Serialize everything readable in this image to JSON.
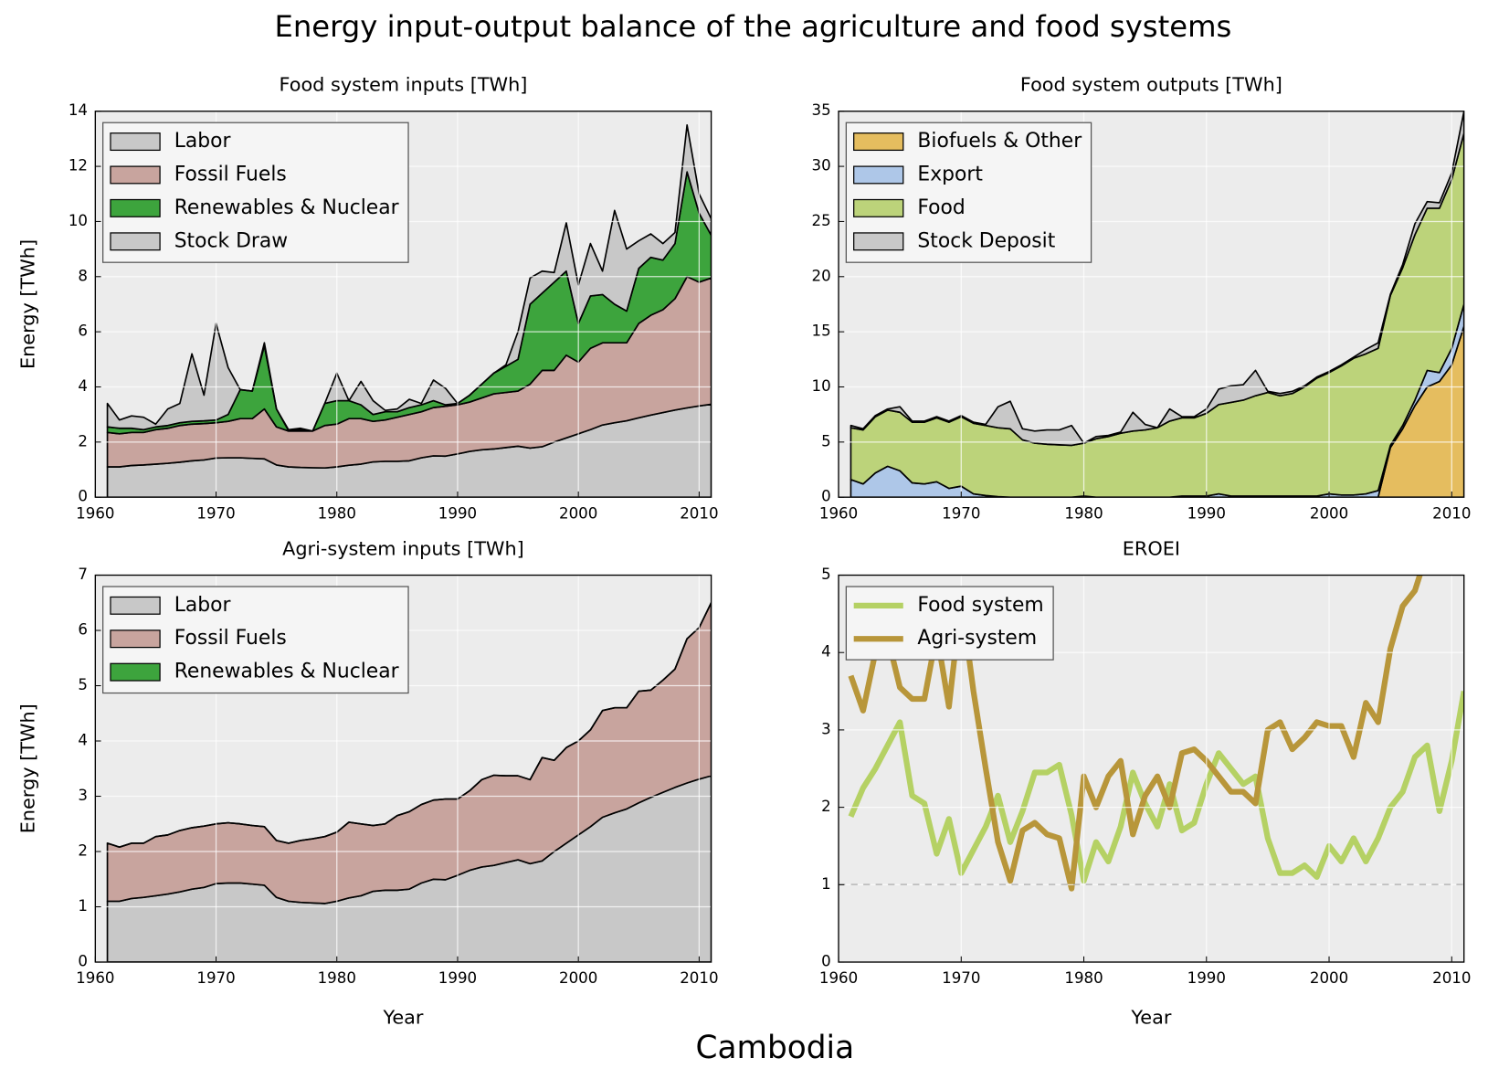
{
  "title": "Energy input-output balance of the agriculture and food systems",
  "country": "Cambodia",
  "chart_data": [
    {
      "type": "stacked_area",
      "title": "Food system inputs [TWh]",
      "ylabel": "Energy [TWh]",
      "xlim": [
        1960,
        2011
      ],
      "xticks": [
        1960,
        1970,
        1980,
        1990,
        2000,
        2010
      ],
      "ylim": [
        0,
        14
      ],
      "yticks": [
        0,
        2,
        4,
        6,
        8,
        10,
        12,
        14
      ],
      "grid": true,
      "legend": "upper left",
      "x": [
        1961,
        1962,
        1963,
        1964,
        1965,
        1966,
        1967,
        1968,
        1969,
        1970,
        1971,
        1972,
        1973,
        1974,
        1975,
        1976,
        1977,
        1978,
        1979,
        1980,
        1981,
        1982,
        1983,
        1984,
        1985,
        1986,
        1987,
        1988,
        1989,
        1990,
        1991,
        1992,
        1993,
        1994,
        1995,
        1996,
        1997,
        1998,
        1999,
        2000,
        2001,
        2002,
        2003,
        2004,
        2005,
        2006,
        2007,
        2008,
        2009,
        2010,
        2011
      ],
      "series": [
        {
          "name": "Labor",
          "color": "#c8c8c8",
          "values": [
            1.1,
            1.1,
            1.15,
            1.17,
            1.2,
            1.23,
            1.27,
            1.32,
            1.35,
            1.42,
            1.43,
            1.43,
            1.41,
            1.39,
            1.17,
            1.1,
            1.08,
            1.07,
            1.06,
            1.1,
            1.16,
            1.2,
            1.28,
            1.3,
            1.3,
            1.32,
            1.43,
            1.5,
            1.49,
            1.57,
            1.66,
            1.72,
            1.75,
            1.8,
            1.85,
            1.78,
            1.83,
            2.0,
            2.15,
            2.3,
            2.45,
            2.62,
            2.7,
            2.77,
            2.88,
            2.98,
            3.07,
            3.16,
            3.24,
            3.31,
            3.37
          ]
        },
        {
          "name": "Fossil Fuels",
          "color": "#c8a49e",
          "values": [
            1.25,
            1.2,
            1.2,
            1.18,
            1.25,
            1.27,
            1.33,
            1.33,
            1.32,
            1.28,
            1.32,
            1.42,
            1.44,
            1.81,
            1.38,
            1.3,
            1.32,
            1.33,
            1.54,
            1.55,
            1.69,
            1.65,
            1.47,
            1.5,
            1.6,
            1.68,
            1.67,
            1.75,
            1.81,
            1.78,
            1.79,
            1.88,
            2.0,
            2.0,
            2.0,
            2.32,
            2.77,
            2.6,
            3.0,
            2.6,
            2.95,
            2.98,
            2.9,
            2.83,
            3.42,
            3.62,
            3.73,
            4.04,
            4.76,
            4.49,
            4.58
          ]
        },
        {
          "name": "Renewables & Nuclear",
          "color": "#3da43d",
          "values": [
            0.2,
            0.2,
            0.15,
            0.1,
            0.1,
            0.1,
            0.1,
            0.1,
            0.1,
            0.1,
            0.25,
            1.05,
            1.0,
            2.3,
            0.65,
            0.02,
            0.05,
            0,
            0.8,
            0.85,
            0.65,
            0.5,
            0.25,
            0.3,
            0.2,
            0.25,
            0.25,
            0.25,
            0.05,
            0.05,
            0.25,
            0.5,
            0.75,
            0.95,
            1.15,
            2.9,
            2.8,
            3.2,
            3.05,
            1.4,
            1.9,
            1.75,
            1.4,
            1.15,
            2.0,
            2.1,
            1.8,
            2.0,
            3.8,
            2.5,
            1.55
          ]
        },
        {
          "name": "Stock Draw",
          "color": "#c8c8c8",
          "values": [
            0.85,
            0.3,
            0.45,
            0.45,
            0.1,
            0.6,
            0.7,
            2.45,
            0.93,
            3.5,
            1.7,
            0,
            0,
            0.1,
            0,
            0.03,
            0.05,
            0,
            0,
            1.0,
            0,
            0.85,
            0.5,
            0.05,
            0.1,
            0.3,
            0.05,
            0.75,
            0.6,
            0,
            0,
            0,
            0,
            0.05,
            1.0,
            0.95,
            0.8,
            0.35,
            1.75,
            1.4,
            1.9,
            0.85,
            3.4,
            2.25,
            1.0,
            0.85,
            0.6,
            0.4,
            1.7,
            0.7,
            0.6
          ]
        }
      ]
    },
    {
      "type": "stacked_area",
      "title": "Food system outputs [TWh]",
      "xlim": [
        1960,
        2011
      ],
      "xticks": [
        1960,
        1970,
        1980,
        1990,
        2000,
        2010
      ],
      "ylim": [
        0,
        35
      ],
      "yticks": [
        0,
        5,
        10,
        15,
        20,
        25,
        30,
        35
      ],
      "grid": true,
      "legend": "upper left",
      "x": [
        1961,
        1962,
        1963,
        1964,
        1965,
        1966,
        1967,
        1968,
        1969,
        1970,
        1971,
        1972,
        1973,
        1974,
        1975,
        1976,
        1977,
        1978,
        1979,
        1980,
        1981,
        1982,
        1983,
        1984,
        1985,
        1986,
        1987,
        1988,
        1989,
        1990,
        1991,
        1992,
        1993,
        1994,
        1995,
        1996,
        1997,
        1998,
        1999,
        2000,
        2001,
        2002,
        2003,
        2004,
        2005,
        2006,
        2007,
        2008,
        2009,
        2010,
        2011
      ],
      "series": [
        {
          "name": "Biofuels & Other",
          "color": "#e5bd5f",
          "values": [
            0,
            0,
            0,
            0,
            0,
            0,
            0,
            0,
            0,
            0,
            0,
            0,
            0,
            0,
            0,
            0,
            0,
            0,
            0,
            0,
            0,
            0,
            0,
            0,
            0,
            0,
            0,
            0,
            0,
            0,
            0,
            0,
            0,
            0,
            0,
            0,
            0,
            0,
            0,
            0,
            0,
            0,
            0,
            0,
            4.5,
            6.2,
            8.3,
            10,
            10.5,
            12,
            15.5
          ]
        },
        {
          "name": "Export",
          "color": "#aec7e8",
          "values": [
            1.6,
            1.2,
            2.2,
            2.8,
            2.4,
            1.3,
            1.2,
            1.4,
            0.8,
            1.0,
            0.3,
            0.15,
            0.05,
            0,
            0,
            0,
            0,
            0,
            0,
            0.1,
            0,
            0,
            0,
            0,
            0,
            0,
            0,
            0.1,
            0.1,
            0.1,
            0.3,
            0.1,
            0.1,
            0.1,
            0.1,
            0.1,
            0.1,
            0.1,
            0.1,
            0.3,
            0.2,
            0.2,
            0.3,
            0.6,
            0.2,
            0.3,
            0.5,
            1.5,
            0.8,
            1.5,
            2.0
          ]
        },
        {
          "name": "Food",
          "color": "#bcd37a",
          "values": [
            4.7,
            4.9,
            5.1,
            5.1,
            5.3,
            5.5,
            5.6,
            5.8,
            6.0,
            6.3,
            6.4,
            6.35,
            6.25,
            6.2,
            5.2,
            4.9,
            4.8,
            4.75,
            4.7,
            4.8,
            5.3,
            5.5,
            5.8,
            6.0,
            6.1,
            6.3,
            6.9,
            7.1,
            7.1,
            7.5,
            8.1,
            8.5,
            8.7,
            9.1,
            9.4,
            9.1,
            9.3,
            9.9,
            10.7,
            11.0,
            11.7,
            12.4,
            12.7,
            12.9,
            13.6,
            14.3,
            15.0,
            14.7,
            14.9,
            15.3,
            15.5
          ]
        },
        {
          "name": "Stock Deposit",
          "color": "#c8c8c8",
          "values": [
            0.2,
            0.1,
            0.1,
            0.1,
            0.5,
            0.1,
            0.1,
            0.1,
            0.1,
            0.1,
            0.1,
            0.1,
            1.9,
            2.5,
            1.0,
            1.1,
            1.3,
            1.35,
            1.8,
            0,
            0.2,
            0.1,
            0.1,
            1.7,
            0.5,
            0,
            1.1,
            0.1,
            0.1,
            0.4,
            1.4,
            1.5,
            1.4,
            2.3,
            0.1,
            0.2,
            0.2,
            0.1,
            0.1,
            0.1,
            0.1,
            0.1,
            0.4,
            0.5,
            0.1,
            0.3,
            1.0,
            0.6,
            0.5,
            0.6,
            2.0
          ]
        }
      ]
    },
    {
      "type": "stacked_area",
      "title": "Agri-system inputs [TWh]",
      "ylabel": "Energy [TWh]",
      "xlabel": "Year",
      "xlim": [
        1960,
        2011
      ],
      "xticks": [
        1960,
        1970,
        1980,
        1990,
        2000,
        2010
      ],
      "ylim": [
        0,
        7
      ],
      "yticks": [
        0,
        1,
        2,
        3,
        4,
        5,
        6,
        7
      ],
      "grid": true,
      "legend": "upper left",
      "x": [
        1961,
        1962,
        1963,
        1964,
        1965,
        1966,
        1967,
        1968,
        1969,
        1970,
        1971,
        1972,
        1973,
        1974,
        1975,
        1976,
        1977,
        1978,
        1979,
        1980,
        1981,
        1982,
        1983,
        1984,
        1985,
        1986,
        1987,
        1988,
        1989,
        1990,
        1991,
        1992,
        1993,
        1994,
        1995,
        1996,
        1997,
        1998,
        1999,
        2000,
        2001,
        2002,
        2003,
        2004,
        2005,
        2006,
        2007,
        2008,
        2009,
        2010,
        2011
      ],
      "series": [
        {
          "name": "Labor",
          "color": "#c8c8c8",
          "values": [
            1.1,
            1.1,
            1.15,
            1.17,
            1.2,
            1.23,
            1.27,
            1.32,
            1.35,
            1.42,
            1.43,
            1.43,
            1.41,
            1.39,
            1.17,
            1.1,
            1.08,
            1.07,
            1.06,
            1.1,
            1.16,
            1.2,
            1.28,
            1.3,
            1.3,
            1.32,
            1.43,
            1.5,
            1.49,
            1.57,
            1.66,
            1.72,
            1.75,
            1.8,
            1.85,
            1.78,
            1.83,
            2.0,
            2.15,
            2.3,
            2.45,
            2.62,
            2.7,
            2.77,
            2.88,
            2.98,
            3.07,
            3.16,
            3.24,
            3.31,
            3.37
          ]
        },
        {
          "name": "Fossil Fuels",
          "color": "#c8a49e",
          "values": [
            1.05,
            0.98,
            1.0,
            0.98,
            1.07,
            1.07,
            1.11,
            1.11,
            1.11,
            1.08,
            1.09,
            1.07,
            1.06,
            1.06,
            1.03,
            1.05,
            1.12,
            1.16,
            1.21,
            1.25,
            1.37,
            1.3,
            1.19,
            1.2,
            1.35,
            1.4,
            1.42,
            1.43,
            1.46,
            1.38,
            1.44,
            1.58,
            1.63,
            1.57,
            1.52,
            1.52,
            1.87,
            1.65,
            1.73,
            1.7,
            1.75,
            1.93,
            1.9,
            1.83,
            2.02,
            1.94,
            2.03,
            2.14,
            2.61,
            2.74,
            3.13
          ]
        },
        {
          "name": "Renewables & Nuclear",
          "color": "#3da43d",
          "values": [
            0,
            0,
            0,
            0,
            0,
            0,
            0,
            0,
            0,
            0,
            0,
            0,
            0,
            0,
            0,
            0,
            0,
            0,
            0,
            0,
            0,
            0,
            0,
            0,
            0,
            0,
            0,
            0,
            0,
            0,
            0,
            0,
            0,
            0,
            0,
            0,
            0,
            0,
            0,
            0,
            0,
            0,
            0,
            0,
            0,
            0,
            0,
            0,
            0,
            0,
            0
          ]
        }
      ]
    },
    {
      "type": "line",
      "title": "EROEI",
      "xlabel": "Year",
      "xlim": [
        1960,
        2011
      ],
      "xticks": [
        1960,
        1970,
        1980,
        1990,
        2000,
        2010
      ],
      "ylim": [
        0,
        5
      ],
      "yticks": [
        0,
        1,
        2,
        3,
        4,
        5
      ],
      "grid": true,
      "legend": "upper left",
      "reference_line": 1,
      "x": [
        1961,
        1962,
        1963,
        1964,
        1965,
        1966,
        1967,
        1968,
        1969,
        1970,
        1971,
        1972,
        1973,
        1974,
        1975,
        1976,
        1977,
        1978,
        1979,
        1980,
        1981,
        1982,
        1983,
        1984,
        1985,
        1986,
        1987,
        1988,
        1989,
        1990,
        1991,
        1992,
        1993,
        1994,
        1995,
        1996,
        1997,
        1998,
        1999,
        2000,
        2001,
        2002,
        2003,
        2004,
        2005,
        2006,
        2007,
        2008,
        2009,
        2010,
        2011
      ],
      "series": [
        {
          "name": "Food system",
          "color": "#b5d164",
          "values": [
            1.88,
            2.25,
            2.5,
            2.8,
            3.1,
            2.15,
            2.05,
            1.4,
            1.85,
            1.15,
            1.45,
            1.75,
            2.15,
            1.55,
            1.95,
            2.45,
            2.45,
            2.55,
            1.9,
            1.05,
            1.55,
            1.3,
            1.75,
            2.45,
            2.05,
            1.75,
            2.3,
            1.7,
            1.8,
            2.3,
            2.7,
            2.5,
            2.3,
            2.4,
            1.6,
            1.15,
            1.15,
            1.25,
            1.1,
            1.5,
            1.3,
            1.6,
            1.3,
            1.6,
            2.0,
            2.2,
            2.65,
            2.8,
            1.95,
            2.6,
            3.5
          ]
        },
        {
          "name": "Agri-system",
          "color": "#b8963a",
          "values": [
            3.7,
            3.25,
            4.0,
            4.2,
            3.55,
            3.4,
            3.4,
            4.25,
            3.3,
            4.7,
            3.5,
            2.5,
            1.55,
            1.05,
            1.7,
            1.8,
            1.65,
            1.6,
            0.95,
            2.4,
            2.0,
            2.4,
            2.6,
            1.65,
            2.15,
            2.4,
            2.0,
            2.7,
            2.75,
            2.6,
            2.4,
            2.2,
            2.2,
            2.05,
            3.0,
            3.1,
            2.75,
            2.9,
            3.1,
            3.05,
            3.05,
            2.65,
            3.35,
            3.1,
            4.05,
            4.6,
            4.8,
            5.3,
            null,
            null,
            null
          ]
        }
      ]
    }
  ]
}
